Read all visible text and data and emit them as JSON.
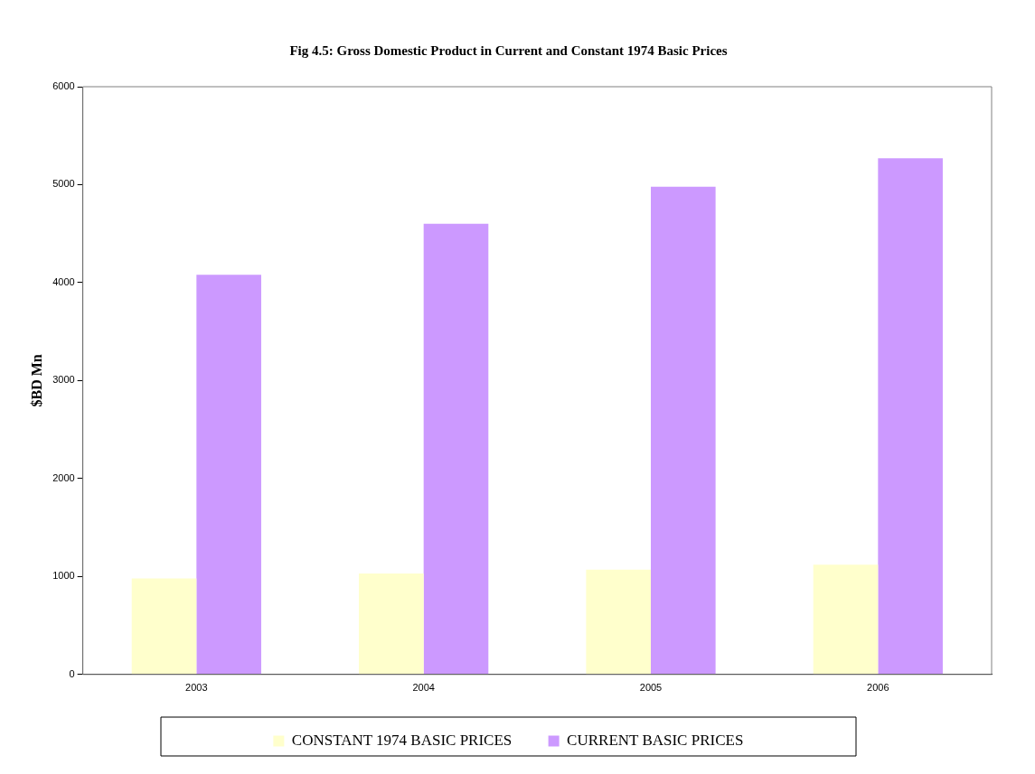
{
  "chart_data": {
    "type": "bar",
    "title": "Fig 4.5: Gross Domestic Product in Current and Constant 1974 Basic Prices",
    "ylabel": "$BD Mn",
    "categories": [
      "2003",
      "2004",
      "2005",
      "2006"
    ],
    "series": [
      {
        "name": "CONSTANT 1974 BASIC PRICES",
        "color": "#ffffcc",
        "values": [
          980,
          1030,
          1070,
          1120
        ]
      },
      {
        "name": "CURRENT BASIC PRICES",
        "color": "#cc99ff",
        "values": [
          4080,
          4600,
          4980,
          5270
        ]
      }
    ],
    "ylim": [
      0,
      6000
    ],
    "yticks": [
      0,
      1000,
      2000,
      3000,
      4000,
      5000,
      6000
    ],
    "grid": false,
    "legend": "bottom"
  }
}
